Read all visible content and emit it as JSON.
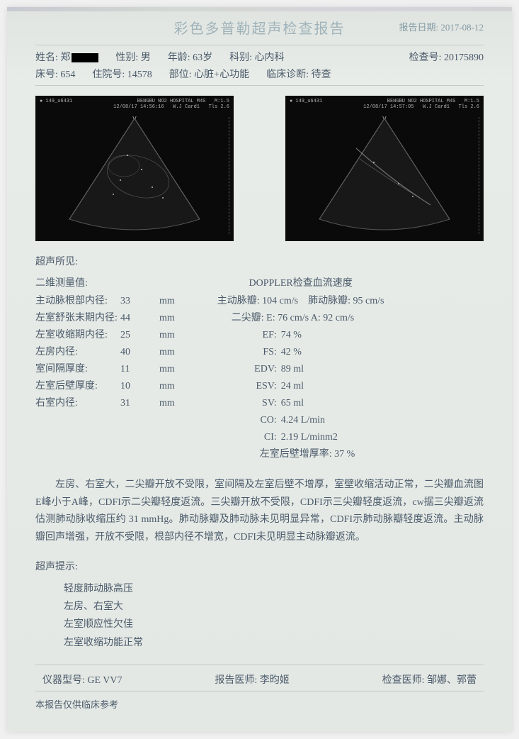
{
  "header": {
    "title": "彩色多普勒超声检查报告",
    "report_date_label": "报告日期:",
    "report_date": "2017-08-12"
  },
  "patient": {
    "name_label": "姓名:",
    "name_prefix": "郑",
    "sex_label": "性别:",
    "sex": "男",
    "age_label": "年龄:",
    "age": "63岁",
    "dept_label": "科别:",
    "dept": "心内科",
    "exam_no_label": "检查号:",
    "exam_no": "20175890",
    "bed_label": "床号:",
    "bed": "654",
    "hosp_no_label": "住院号:",
    "hosp_no": "14578",
    "part_label": "部位:",
    "part": "心脏+心功能",
    "clin_dx_label": "临床诊断:",
    "clin_dx": "待查"
  },
  "us_image_meta": {
    "left_top_l": "● 149_u6431",
    "left_top_r": "BENGBU NO2 HOSPITAL M4S   M:1.5\n12/08/17 14:56:16   W.J Card1   Tls 2.6",
    "right_top_l": "● 149_u6431",
    "right_top_r": "BENGBU NO2 HOSPITAL M4S   M:1.5\n12/08/17 14:57:05   W.J Card1   Tls 2.6",
    "marker": "V"
  },
  "findings_label": "超声所见:",
  "meas_2d_label": "二维测量值:",
  "doppler_label": "DOPPLER检查血流速度",
  "meas_2d": [
    {
      "label": "主动脉根部内径:",
      "val": "33",
      "unit": "mm"
    },
    {
      "label": "左室舒张末期内径:",
      "val": "44",
      "unit": "mm"
    },
    {
      "label": "左室收缩期内径:",
      "val": "25",
      "unit": "mm"
    },
    {
      "label": "左房内径:",
      "val": "40",
      "unit": "mm"
    },
    {
      "label": "室间隔厚度:",
      "val": "11",
      "unit": "mm"
    },
    {
      "label": "左室后壁厚度:",
      "val": "10",
      "unit": "mm"
    },
    {
      "label": "右室内径:",
      "val": "31",
      "unit": "mm"
    }
  ],
  "doppler": {
    "line1_a": "主动脉瓣: 104 cm/s",
    "line1_b": "肺动脉瓣: 95 cm/s",
    "line2": "二尖瓣:   E: 76 cm/s   A: 92 cm/s",
    "rows": [
      {
        "label": "EF:",
        "val": "74 %"
      },
      {
        "label": "FS:",
        "val": "42 %"
      },
      {
        "label": "EDV:",
        "val": "89 ml"
      },
      {
        "label": "ESV:",
        "val": "24 ml"
      },
      {
        "label": "SV:",
        "val": "65 ml"
      },
      {
        "label": "CO:",
        "val": "4.24 L/min"
      },
      {
        "label": "CI:",
        "val": "2.19 L/minm2"
      }
    ],
    "extra": "左室后壁增厚率: 37 %"
  },
  "narrative": "左房、右室大，二尖瓣开放不受限，室间隔及左室后壁不增厚，室壁收缩活动正常，二尖瓣血流图E峰小于A峰，CDFI示二尖瓣轻度返流。三尖瓣开放不受限，CDFI示三尖瓣轻度返流，cw据三尖瓣返流估测肺动脉收缩压约 31 mmHg。肺动脉瓣及肺动脉未见明显异常，CDFI示肺动脉瓣轻度返流。主动脉瓣回声增强，开放不受限，根部内径不增宽，CDFI未见明显主动脉瓣返流。",
  "suggest_label": "超声提示:",
  "suggestions": [
    "轻度肺动脉高压",
    "左房、右室大",
    "左室顺应性欠佳",
    "左室收缩功能正常"
  ],
  "footer": {
    "device_label": "仪器型号:",
    "device": "GE VV7",
    "report_dr_label": "报告医师:",
    "report_dr": "李昀姬",
    "exam_dr_label": "检查医师:",
    "exam_dr": "邹娜、郭蕾"
  },
  "disclaimer": "本报告仅供临床参考",
  "colors": {
    "page_bg": "#e8ece8",
    "text": "#4a5a6a",
    "title": "#6a8a9a",
    "divider": "#a0a8a0",
    "us_bg": "#0a0a0a"
  }
}
